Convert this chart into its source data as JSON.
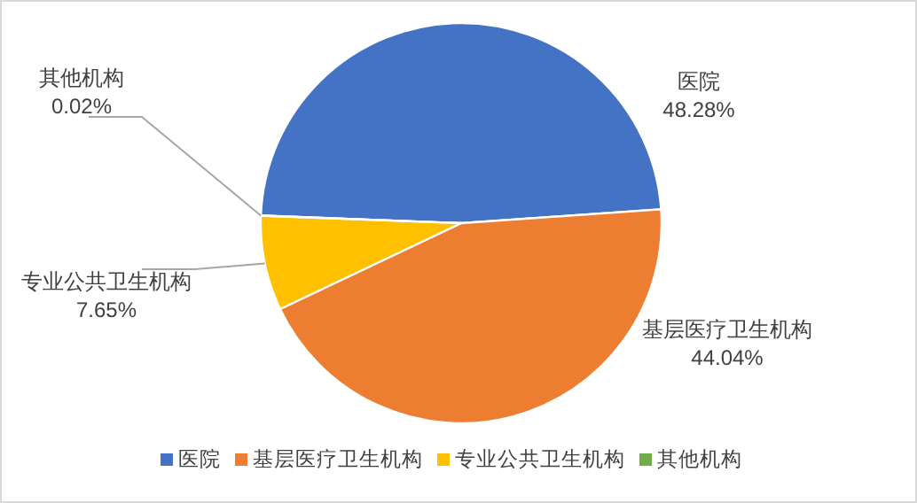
{
  "chart_data": {
    "type": "pie",
    "categories": [
      "医院",
      "基层医疗卫生机构",
      "专业公共卫生机构",
      "其他机构"
    ],
    "values": [
      48.28,
      44.04,
      7.65,
      0.02
    ],
    "colors": [
      "#4472c4",
      "#ed7d31",
      "#ffc000",
      "#70ad47"
    ],
    "value_labels": [
      "48.28%",
      "44.04%",
      "7.65%",
      "0.02%"
    ],
    "legend": "bottom"
  }
}
